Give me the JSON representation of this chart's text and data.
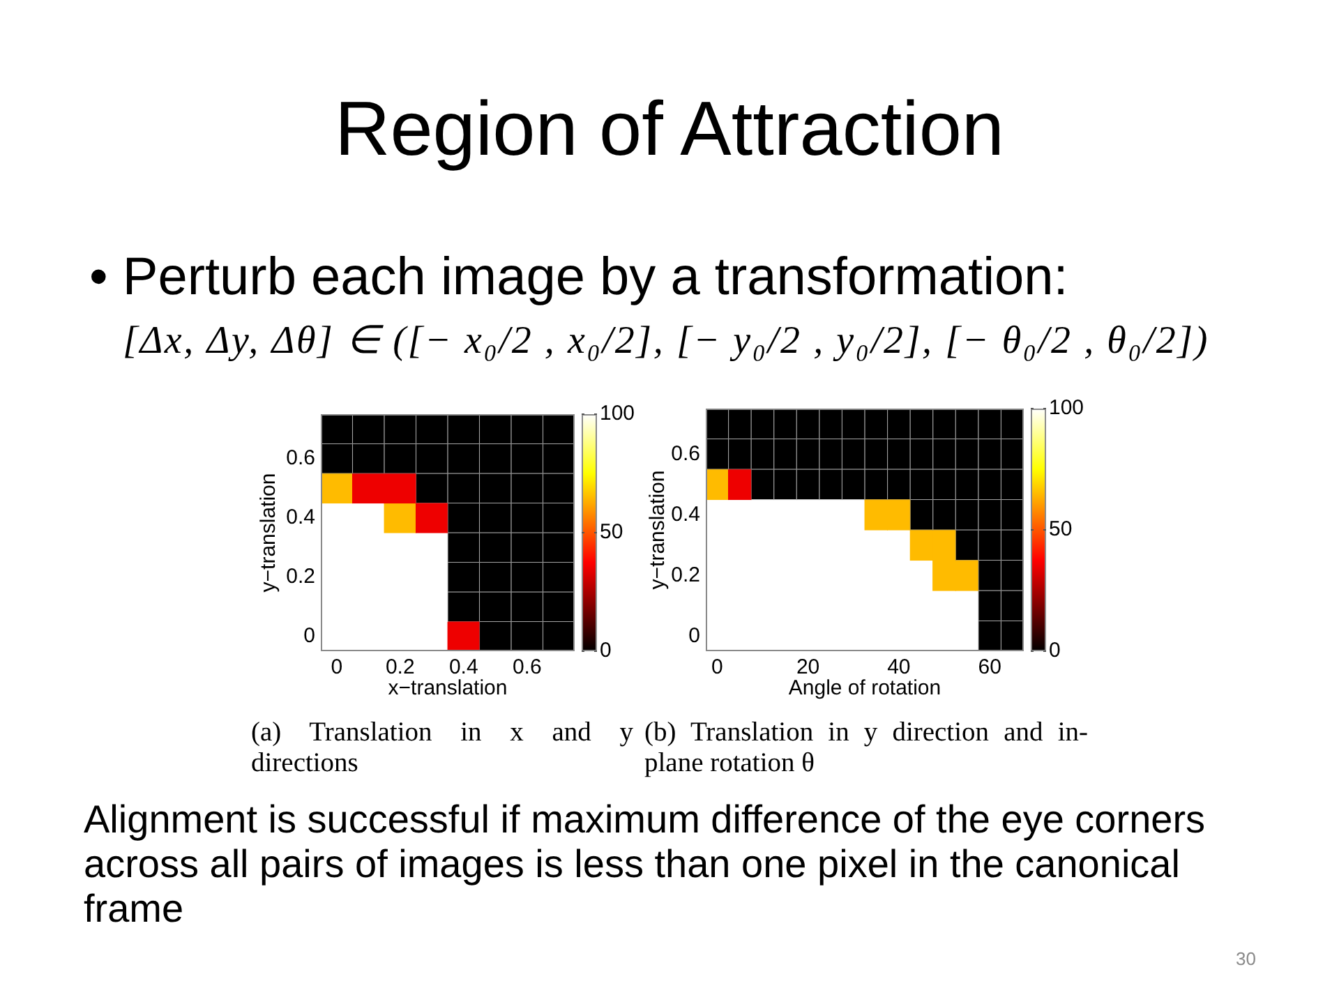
{
  "chart_data": [
    {
      "type": "other",
      "title": "Region of Attraction",
      "annotations": [
        "• Perturb each image by a transformation:",
        "[Δx, Δy, Δθ] ∈ ([− x₀/2 , x₀/2], [− y₀/2 , y₀/2], [− θ₀/2 , θ₀/2])"
      ]
    },
    {
      "type": "heatmap",
      "title": "(a) Translation in x and y directions",
      "xlabel": "x−translation",
      "ylabel": "y−translation",
      "categories": [
        "0",
        null,
        "0.2",
        null,
        "0.4",
        null,
        "0.6",
        null
      ],
      "y_categories": [
        null,
        "0.6",
        null,
        "0.4",
        null,
        "0.2",
        null,
        "0"
      ],
      "cells": [
        [
          0,
          0,
          0,
          0,
          0,
          0,
          0,
          0
        ],
        [
          0,
          0,
          0,
          0,
          0,
          0,
          0,
          0
        ],
        [
          65,
          35,
          35,
          0,
          0,
          0,
          0,
          0
        ],
        [
          100,
          100,
          65,
          35,
          0,
          0,
          0,
          0
        ],
        [
          100,
          100,
          100,
          100,
          0,
          0,
          0,
          0
        ],
        [
          100,
          100,
          100,
          100,
          0,
          0,
          0,
          0
        ],
        [
          100,
          100,
          100,
          100,
          0,
          0,
          0,
          0
        ],
        [
          100,
          100,
          100,
          100,
          35,
          0,
          0,
          0
        ]
      ],
      "clim": [
        0,
        100
      ],
      "cticks": [
        0,
        50,
        100
      ]
    },
    {
      "type": "heatmap",
      "title": "(b) Translation in y direction and in-plane rotation θ",
      "xlabel": "Angle of rotation",
      "ylabel": "y−translation",
      "categories": [
        "0",
        null,
        null,
        null,
        "20",
        null,
        null,
        null,
        "40",
        null,
        null,
        null,
        "60",
        null
      ],
      "y_categories": [
        null,
        "0.6",
        null,
        "0.4",
        null,
        "0.2",
        null,
        "0"
      ],
      "cells": [
        [
          0,
          0,
          0,
          0,
          0,
          0,
          0,
          0,
          0,
          0,
          0,
          0,
          0,
          0
        ],
        [
          0,
          0,
          0,
          0,
          0,
          0,
          0,
          0,
          0,
          0,
          0,
          0,
          0,
          0
        ],
        [
          65,
          35,
          0,
          0,
          0,
          0,
          0,
          0,
          0,
          0,
          0,
          0,
          0,
          0
        ],
        [
          100,
          100,
          100,
          100,
          100,
          100,
          100,
          65,
          65,
          0,
          0,
          0,
          0,
          0
        ],
        [
          100,
          100,
          100,
          100,
          100,
          100,
          100,
          100,
          100,
          65,
          65,
          0,
          0,
          0
        ],
        [
          100,
          100,
          100,
          100,
          100,
          100,
          100,
          100,
          100,
          100,
          65,
          65,
          0,
          0
        ],
        [
          100,
          100,
          100,
          100,
          100,
          100,
          100,
          100,
          100,
          100,
          100,
          100,
          0,
          0
        ],
        [
          100,
          100,
          100,
          100,
          100,
          100,
          100,
          100,
          100,
          100,
          100,
          100,
          0,
          0
        ]
      ],
      "clim": [
        0,
        100
      ],
      "cticks": [
        0,
        50,
        100
      ]
    },
    {
      "type": "other",
      "annotations": [
        "Alignment is successful if maximum difference of the eye corners across all pairs of images is less than one pixel in the canonical frame",
        "30"
      ]
    }
  ]
}
